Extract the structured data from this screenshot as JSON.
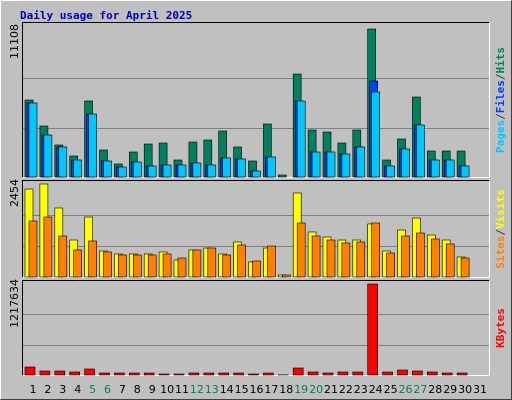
{
  "chart_data": [
    {
      "type": "bar",
      "title": "Daily usage for April 2025",
      "title_color": "#0000c0",
      "ylim": [
        0,
        11108
      ],
      "yticks": [
        11108
      ],
      "legend_separator": "/",
      "separator_color": "#404040",
      "series": [
        {
          "name": "Hits",
          "color": "#00805c",
          "values": [
            5779,
            3828,
            2402,
            1576,
            5704,
            2026,
            976,
            1876,
            2477,
            2552,
            1276,
            2627,
            2777,
            3452,
            2252,
            1201,
            3978,
            150,
            7730,
            3527,
            3377,
            2552,
            3527,
            11108,
            1276,
            2852,
            6004,
            1951,
            1951,
            1951,
            0
          ]
        },
        {
          "name": "Files",
          "color": "#0040ff",
          "values": [
            5554,
            3152,
            2252,
            1276,
            4728,
            1201,
            750,
            1126,
            826,
            901,
            901,
            1051,
            901,
            1426,
            1351,
            450,
            1501,
            0,
            5704,
            1876,
            1876,
            1726,
            2252,
            7205,
            826,
            2102,
            3903,
            1276,
            1276,
            826,
            0
          ]
        },
        {
          "name": "Pages",
          "color": "#00c8ff",
          "values": [
            5554,
            3152,
            2252,
            1276,
            4728,
            1201,
            750,
            1126,
            826,
            901,
            901,
            1051,
            901,
            1426,
            1351,
            450,
            1501,
            0,
            5704,
            1876,
            1876,
            1726,
            2252,
            6379,
            826,
            2102,
            3903,
            1276,
            1276,
            826,
            0
          ]
        }
      ]
    },
    {
      "type": "bar",
      "ylim": [
        0,
        2454
      ],
      "yticks": [
        2454
      ],
      "legend_separator": "/",
      "separator_color": "#404040",
      "series": [
        {
          "name": "Visits",
          "color": "#ffff00",
          "values": [
            2322,
            2454,
            1821,
            976,
            1583,
            686,
            607,
            607,
            607,
            660,
            449,
            713,
            765,
            607,
            924,
            396,
            765,
            53,
            2217,
            1188,
            1056,
            976,
            976,
            1400,
            686,
            1240,
            1557,
            1108,
            976,
            528,
            0
          ]
        },
        {
          "name": "Sites",
          "color": "#ff8000",
          "values": [
            1478,
            1583,
            1082,
            713,
            950,
            660,
            581,
            581,
            581,
            607,
            501,
            713,
            765,
            581,
            844,
            422,
            818,
            53,
            1425,
            1082,
            976,
            897,
            924,
            1425,
            633,
            1082,
            1161,
            1003,
            871,
            501,
            0
          ]
        }
      ]
    },
    {
      "type": "bar",
      "ylim": [
        0,
        1217634
      ],
      "yticks": [
        1217634
      ],
      "categories": [
        "1",
        "2",
        "3",
        "4",
        "5",
        "6",
        "7",
        "8",
        "9",
        "10",
        "11",
        "12",
        "13",
        "14",
        "15",
        "16",
        "17",
        "18",
        "19",
        "20",
        "21",
        "22",
        "23",
        "24",
        "25",
        "26",
        "27",
        "28",
        "29",
        "30",
        "31"
      ],
      "category_colors": [
        "#000000",
        "#000000",
        "#000000",
        "#000000",
        "#00805c",
        "#00805c",
        "#000000",
        "#000000",
        "#000000",
        "#000000",
        "#000000",
        "#00805c",
        "#00805c",
        "#000000",
        "#000000",
        "#000000",
        "#000000",
        "#000000",
        "#00805c",
        "#00805c",
        "#000000",
        "#000000",
        "#000000",
        "#000000",
        "#000000",
        "#00805c",
        "#00805c",
        "#000000",
        "#000000",
        "#000000",
        "#000000"
      ],
      "series": [
        {
          "name": "KBytes",
          "color": "#ff0000",
          "values": [
            107040,
            53520,
            53520,
            40140,
            80280,
            26760,
            26760,
            26760,
            26760,
            13380,
            13380,
            26760,
            26760,
            26760,
            26760,
            13380,
            26760,
            2000,
            93660,
            40140,
            26760,
            40140,
            40140,
            1217634,
            40140,
            66900,
            53520,
            40140,
            26760,
            26760,
            0
          ]
        }
      ]
    }
  ]
}
